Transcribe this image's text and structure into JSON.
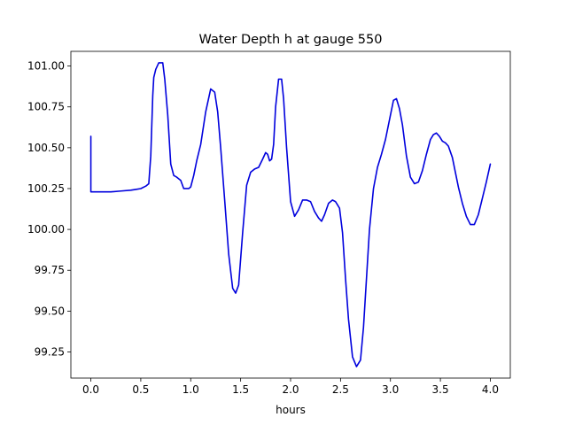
{
  "chart_data": {
    "type": "line",
    "title": "Water Depth h at gauge 550",
    "xlabel": "hours",
    "ylabel": "",
    "xlim": [
      -0.2,
      4.2
    ],
    "ylim": [
      99.09,
      101.09
    ],
    "xticks": [
      0.0,
      0.5,
      1.0,
      1.5,
      2.0,
      2.5,
      3.0,
      3.5,
      4.0
    ],
    "xtick_labels": [
      "0.0",
      "0.5",
      "1.0",
      "1.5",
      "2.0",
      "2.5",
      "3.0",
      "3.5",
      "4.0"
    ],
    "yticks": [
      99.25,
      99.5,
      99.75,
      100.0,
      100.25,
      100.5,
      100.75,
      101.0
    ],
    "ytick_labels": [
      "99.25",
      "99.50",
      "99.75",
      "100.00",
      "100.25",
      "100.50",
      "100.75",
      "101.00"
    ],
    "grid": false,
    "legend": "none",
    "series": [
      {
        "color": "#0000dd",
        "x": [
          0.0,
          0.0,
          0.0,
          0.1,
          0.2,
          0.3,
          0.4,
          0.45,
          0.5,
          0.55,
          0.58,
          0.6,
          0.62,
          0.63,
          0.65,
          0.68,
          0.72,
          0.74,
          0.77,
          0.8,
          0.83,
          0.86,
          0.9,
          0.93,
          0.96,
          0.98,
          1.0,
          1.03,
          1.06,
          1.1,
          1.15,
          1.2,
          1.24,
          1.27,
          1.3,
          1.34,
          1.38,
          1.42,
          1.45,
          1.48,
          1.52,
          1.56,
          1.6,
          1.64,
          1.68,
          1.72,
          1.75,
          1.77,
          1.79,
          1.81,
          1.83,
          1.85,
          1.88,
          1.91,
          1.93,
          1.96,
          2.0,
          2.04,
          2.08,
          2.12,
          2.16,
          2.2,
          2.24,
          2.28,
          2.31,
          2.34,
          2.38,
          2.42,
          2.45,
          2.49,
          2.52,
          2.55,
          2.58,
          2.62,
          2.66,
          2.7,
          2.73,
          2.76,
          2.79,
          2.83,
          2.87,
          2.91,
          2.95,
          3.0,
          3.03,
          3.06,
          3.09,
          3.12,
          3.16,
          3.2,
          3.24,
          3.28,
          3.32,
          3.36,
          3.4,
          3.43,
          3.46,
          3.49,
          3.52,
          3.55,
          3.58,
          3.62,
          3.65,
          3.68,
          3.72,
          3.76,
          3.8,
          3.84,
          3.88,
          3.92,
          3.96,
          4.0
        ],
        "y": [
          100.57,
          100.35,
          100.23,
          100.23,
          100.23,
          100.235,
          100.24,
          100.245,
          100.25,
          100.265,
          100.28,
          100.45,
          100.82,
          100.93,
          100.98,
          101.02,
          101.02,
          100.92,
          100.7,
          100.4,
          100.33,
          100.32,
          100.3,
          100.25,
          100.25,
          100.25,
          100.26,
          100.33,
          100.42,
          100.52,
          100.72,
          100.86,
          100.84,
          100.72,
          100.5,
          100.18,
          99.85,
          99.64,
          99.61,
          99.66,
          99.98,
          100.27,
          100.35,
          100.37,
          100.38,
          100.43,
          100.47,
          100.46,
          100.42,
          100.43,
          100.52,
          100.75,
          100.92,
          100.92,
          100.8,
          100.5,
          100.17,
          100.08,
          100.12,
          100.18,
          100.18,
          100.17,
          100.11,
          100.07,
          100.05,
          100.09,
          100.16,
          100.18,
          100.17,
          100.13,
          99.98,
          99.7,
          99.45,
          99.22,
          99.16,
          99.2,
          99.4,
          99.7,
          100.0,
          100.25,
          100.38,
          100.46,
          100.55,
          100.7,
          100.79,
          100.8,
          100.74,
          100.64,
          100.45,
          100.32,
          100.28,
          100.29,
          100.36,
          100.46,
          100.55,
          100.58,
          100.59,
          100.57,
          100.54,
          100.53,
          100.51,
          100.44,
          100.35,
          100.26,
          100.16,
          100.08,
          100.03,
          100.03,
          100.09,
          100.19,
          100.29,
          100.4
        ]
      }
    ]
  }
}
